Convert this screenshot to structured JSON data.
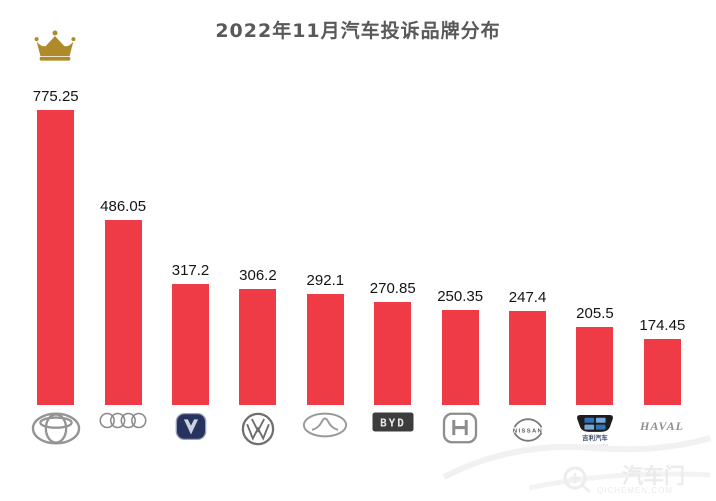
{
  "header": {
    "title": "2022年11月汽车投诉品牌分布",
    "title_color": "#595959"
  },
  "chart_data": {
    "type": "bar",
    "title": "2022年11月汽车投诉品牌分布",
    "categories": [
      "Toyota",
      "Audi",
      "Changan",
      "Volkswagen",
      "Chery",
      "BYD",
      "Honda",
      "Nissan",
      "Geely",
      "Haval"
    ],
    "values": [
      775.25,
      486.05,
      317.2,
      306.2,
      292.1,
      270.85,
      250.35,
      247.4,
      205.5,
      174.45
    ],
    "bar_color": "#EF3B46",
    "value_label_color": "#141414",
    "ylim": [
      0,
      800
    ],
    "grid": false,
    "legend": "none",
    "x_axis_labels": "brand-logos",
    "annotations": [
      {
        "name": "crown-icon",
        "position": "above-first-bar",
        "color": "#AE8A2B"
      }
    ]
  },
  "logo_text": {
    "byd": "BYD",
    "nissan": "NISSAN",
    "geely_cn": "吉利汽车",
    "geely_en": "GEELY AUTO",
    "haval": "HAVAL"
  },
  "watermark": {
    "site_name": "汽车门",
    "site_domain": "QICHEMEN.COM",
    "color": "#ededed"
  }
}
